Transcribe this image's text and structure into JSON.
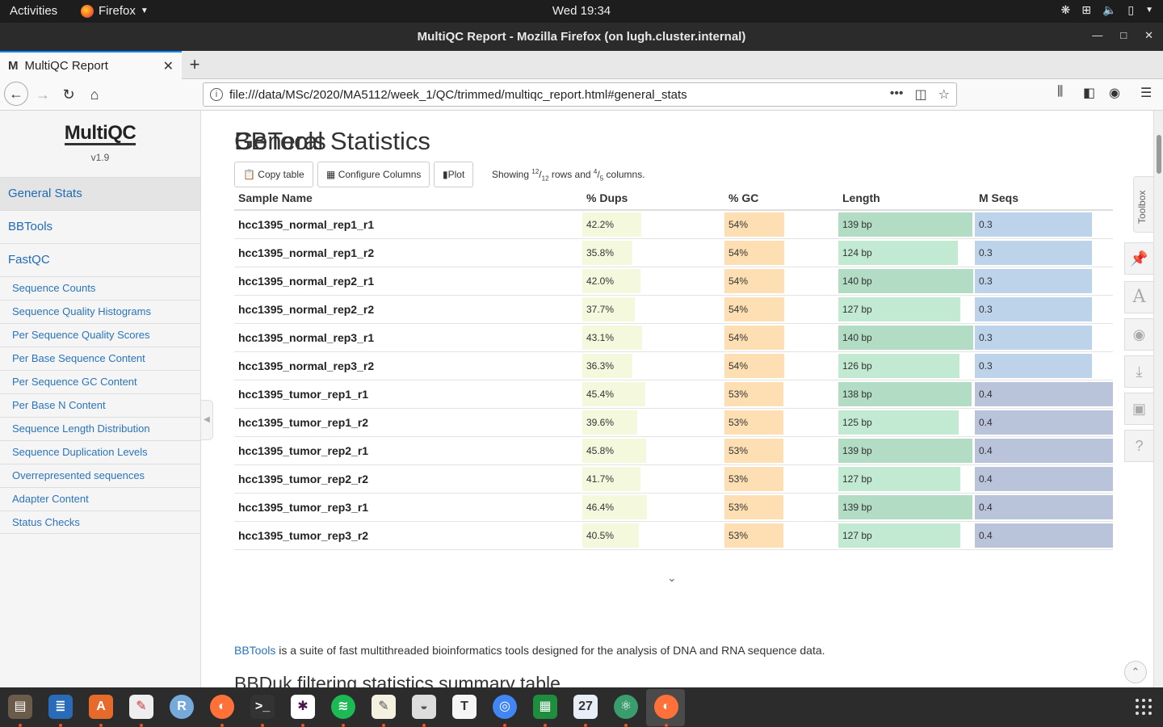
{
  "system": {
    "activities": "Activities",
    "app_name": "Firefox",
    "clock": "Wed 19:34"
  },
  "window": {
    "title": "MultiQC Report - Mozilla Firefox (on lugh.cluster.internal)"
  },
  "browser": {
    "tab_favicon": "M",
    "tab_title": "MultiQC Report",
    "url": "file:///data/MSc/2020/MA5112/week_1/QC/trimmed/multiqc_report.html#general_stats"
  },
  "sidebar": {
    "logo": "MultiQC",
    "version": "v1.9",
    "main_items": [
      {
        "label": "General Stats"
      },
      {
        "label": "BBTools"
      },
      {
        "label": "FastQC"
      }
    ],
    "sub_items": [
      {
        "label": "Sequence Counts"
      },
      {
        "label": "Sequence Quality Histograms"
      },
      {
        "label": "Per Sequence Quality Scores"
      },
      {
        "label": "Per Base Sequence Content"
      },
      {
        "label": "Per Sequence GC Content"
      },
      {
        "label": "Per Base N Content"
      },
      {
        "label": "Sequence Length Distribution"
      },
      {
        "label": "Sequence Duplication Levels"
      },
      {
        "label": "Overrepresented sequences"
      },
      {
        "label": "Adapter Content"
      },
      {
        "label": "Status Checks"
      }
    ]
  },
  "general_stats": {
    "title": "General Statistics",
    "copy_table": "Copy table",
    "configure_columns": "Configure Columns",
    "plot": "Plot",
    "showing_prefix": "Showing",
    "rows_shown": "12",
    "rows_total": "12",
    "rows_and": "rows and",
    "cols_shown": "4",
    "cols_total": "5",
    "cols_suffix": "columns.",
    "columns": [
      "Sample Name",
      "% Dups",
      "% GC",
      "Length",
      "M Seqs"
    ],
    "rows": [
      {
        "sample": "hcc1395_normal_rep1_r1",
        "dups": "42.2%",
        "dups_v": 42.2,
        "gc": "54%",
        "gc_v": 54,
        "len": "139 bp",
        "len_v": 139,
        "mseqs": "0.3",
        "mseqs_v": 0.3
      },
      {
        "sample": "hcc1395_normal_rep1_r2",
        "dups": "35.8%",
        "dups_v": 35.8,
        "gc": "54%",
        "gc_v": 54,
        "len": "124 bp",
        "len_v": 124,
        "mseqs": "0.3",
        "mseqs_v": 0.3
      },
      {
        "sample": "hcc1395_normal_rep2_r1",
        "dups": "42.0%",
        "dups_v": 42.0,
        "gc": "54%",
        "gc_v": 54,
        "len": "140 bp",
        "len_v": 140,
        "mseqs": "0.3",
        "mseqs_v": 0.3
      },
      {
        "sample": "hcc1395_normal_rep2_r2",
        "dups": "37.7%",
        "dups_v": 37.7,
        "gc": "54%",
        "gc_v": 54,
        "len": "127 bp",
        "len_v": 127,
        "mseqs": "0.3",
        "mseqs_v": 0.3
      },
      {
        "sample": "hcc1395_normal_rep3_r1",
        "dups": "43.1%",
        "dups_v": 43.1,
        "gc": "54%",
        "gc_v": 54,
        "len": "140 bp",
        "len_v": 140,
        "mseqs": "0.3",
        "mseqs_v": 0.3
      },
      {
        "sample": "hcc1395_normal_rep3_r2",
        "dups": "36.3%",
        "dups_v": 36.3,
        "gc": "54%",
        "gc_v": 54,
        "len": "126 bp",
        "len_v": 126,
        "mseqs": "0.3",
        "mseqs_v": 0.3
      },
      {
        "sample": "hcc1395_tumor_rep1_r1",
        "dups": "45.4%",
        "dups_v": 45.4,
        "gc": "53%",
        "gc_v": 53,
        "len": "138 bp",
        "len_v": 138,
        "mseqs": "0.4",
        "mseqs_v": 0.4
      },
      {
        "sample": "hcc1395_tumor_rep1_r2",
        "dups": "39.6%",
        "dups_v": 39.6,
        "gc": "53%",
        "gc_v": 53,
        "len": "125 bp",
        "len_v": 125,
        "mseqs": "0.4",
        "mseqs_v": 0.4
      },
      {
        "sample": "hcc1395_tumor_rep2_r1",
        "dups": "45.8%",
        "dups_v": 45.8,
        "gc": "53%",
        "gc_v": 53,
        "len": "139 bp",
        "len_v": 139,
        "mseqs": "0.4",
        "mseqs_v": 0.4
      },
      {
        "sample": "hcc1395_tumor_rep2_r2",
        "dups": "41.7%",
        "dups_v": 41.7,
        "gc": "53%",
        "gc_v": 53,
        "len": "127 bp",
        "len_v": 127,
        "mseqs": "0.4",
        "mseqs_v": 0.4
      },
      {
        "sample": "hcc1395_tumor_rep3_r1",
        "dups": "46.4%",
        "dups_v": 46.4,
        "gc": "53%",
        "gc_v": 53,
        "len": "139 bp",
        "len_v": 139,
        "mseqs": "0.4",
        "mseqs_v": 0.4
      },
      {
        "sample": "hcc1395_tumor_rep3_r2",
        "dups": "40.5%",
        "dups_v": 40.5,
        "gc": "53%",
        "gc_v": 53,
        "len": "127 bp",
        "len_v": 127,
        "mseqs": "0.4",
        "mseqs_v": 0.4
      }
    ]
  },
  "bbtools": {
    "title": "BBTools",
    "link": "BBTools",
    "desc": " is a suite of fast multithreaded bioinformatics tools designed for the analysis of DNA and RNA sequence data.",
    "next_title": "BBDuk filtering statistics summary table"
  },
  "toolbox": {
    "label": "Toolbox",
    "icons": [
      "pin-icon",
      "font-icon",
      "eye-slash-icon",
      "download-icon",
      "save-icon",
      "help-icon"
    ]
  },
  "colors": {
    "dups_bar": "#f4f9de",
    "gc_bar": "#fddfb3",
    "len_bar_high": "#b3dcc5",
    "len_bar_low": "#c2ead2",
    "mseqs_normal": "#bcd3ea",
    "mseqs_tumor": "#b9c3d9",
    "accent": "#0a84ff"
  },
  "dock": {
    "icons": [
      "files-icon",
      "writer-icon",
      "software-icon",
      "evince-icon",
      "rstudio-icon",
      "firefox-icon",
      "terminal-icon",
      "slack-icon",
      "spotify-icon",
      "text-editor-icon",
      "image-viewer-icon",
      "typora-icon",
      "chrome-icon",
      "calc-icon",
      "calendar-icon",
      "atom-icon",
      "firefox-active-icon"
    ],
    "calendar_day": "27",
    "r_label": "R",
    "t_label": "T"
  }
}
